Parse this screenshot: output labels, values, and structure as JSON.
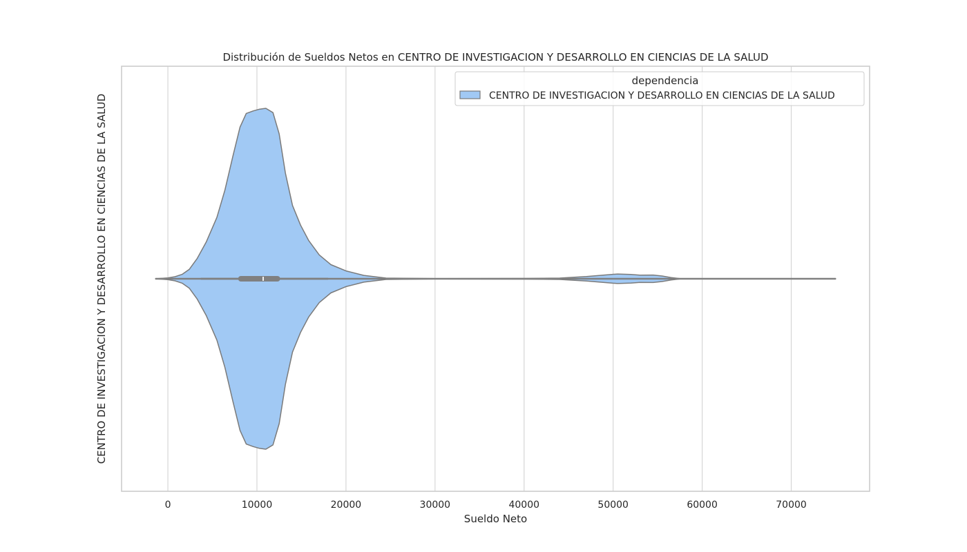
{
  "chart_data": {
    "type": "violin",
    "title": "Distribución de Sueldos Netos en CENTRO DE INVESTIGACION Y DESARROLLO EN CIENCIAS DE LA SALUD",
    "xlabel": "Sueldo Neto",
    "ylabel": "CENTRO DE INVESTIGACION Y DESARROLLO EN CIENCIAS DE LA SALUD",
    "xlim": [
      -5200,
      78800
    ],
    "x_ticks": [
      0,
      10000,
      20000,
      30000,
      40000,
      50000,
      60000,
      70000
    ],
    "x_tick_labels": [
      "0",
      "10000",
      "20000",
      "30000",
      "40000",
      "50000",
      "60000",
      "70000"
    ],
    "grid": true,
    "orientation": "horizontal",
    "legend": {
      "title": "dependencia",
      "position": "top-right",
      "entries": [
        "CENTRO DE INVESTIGACION Y DESARROLLO EN CIENCIAS DE LA SALUD"
      ]
    },
    "series": [
      {
        "name": "CENTRO DE INVESTIGACION Y DESARROLLO EN CIENCIAS DE LA SALUD",
        "color": "#a1c9f4",
        "edge_color": "#7a7a7a",
        "density_x": [
          -1400,
          0,
          800,
          1600,
          2400,
          3300,
          4300,
          5500,
          6400,
          7300,
          8100,
          8800,
          9600,
          10300,
          11000,
          11800,
          12500,
          13200,
          14000,
          14900,
          15800,
          17000,
          18300,
          20000,
          22000,
          24500,
          30000,
          40000,
          44000,
          47000,
          49000,
          50500,
          52000,
          53000,
          54500,
          55500,
          56500,
          57500,
          60000,
          70000,
          75000
        ],
        "density_rel": [
          0.0,
          0.005,
          0.012,
          0.026,
          0.055,
          0.12,
          0.215,
          0.36,
          0.52,
          0.72,
          0.89,
          0.97,
          0.985,
          0.995,
          1.0,
          0.975,
          0.85,
          0.62,
          0.43,
          0.315,
          0.225,
          0.14,
          0.083,
          0.046,
          0.02,
          0.004,
          0.001,
          0.002,
          0.004,
          0.013,
          0.022,
          0.028,
          0.025,
          0.021,
          0.022,
          0.016,
          0.007,
          0.001,
          0.0,
          0.0,
          0.0
        ],
        "whisker": [
          3700,
          18000
        ],
        "quartiles": [
          8200,
          12300
        ],
        "median": 10700,
        "range": [
          -1400,
          75000
        ]
      }
    ]
  }
}
